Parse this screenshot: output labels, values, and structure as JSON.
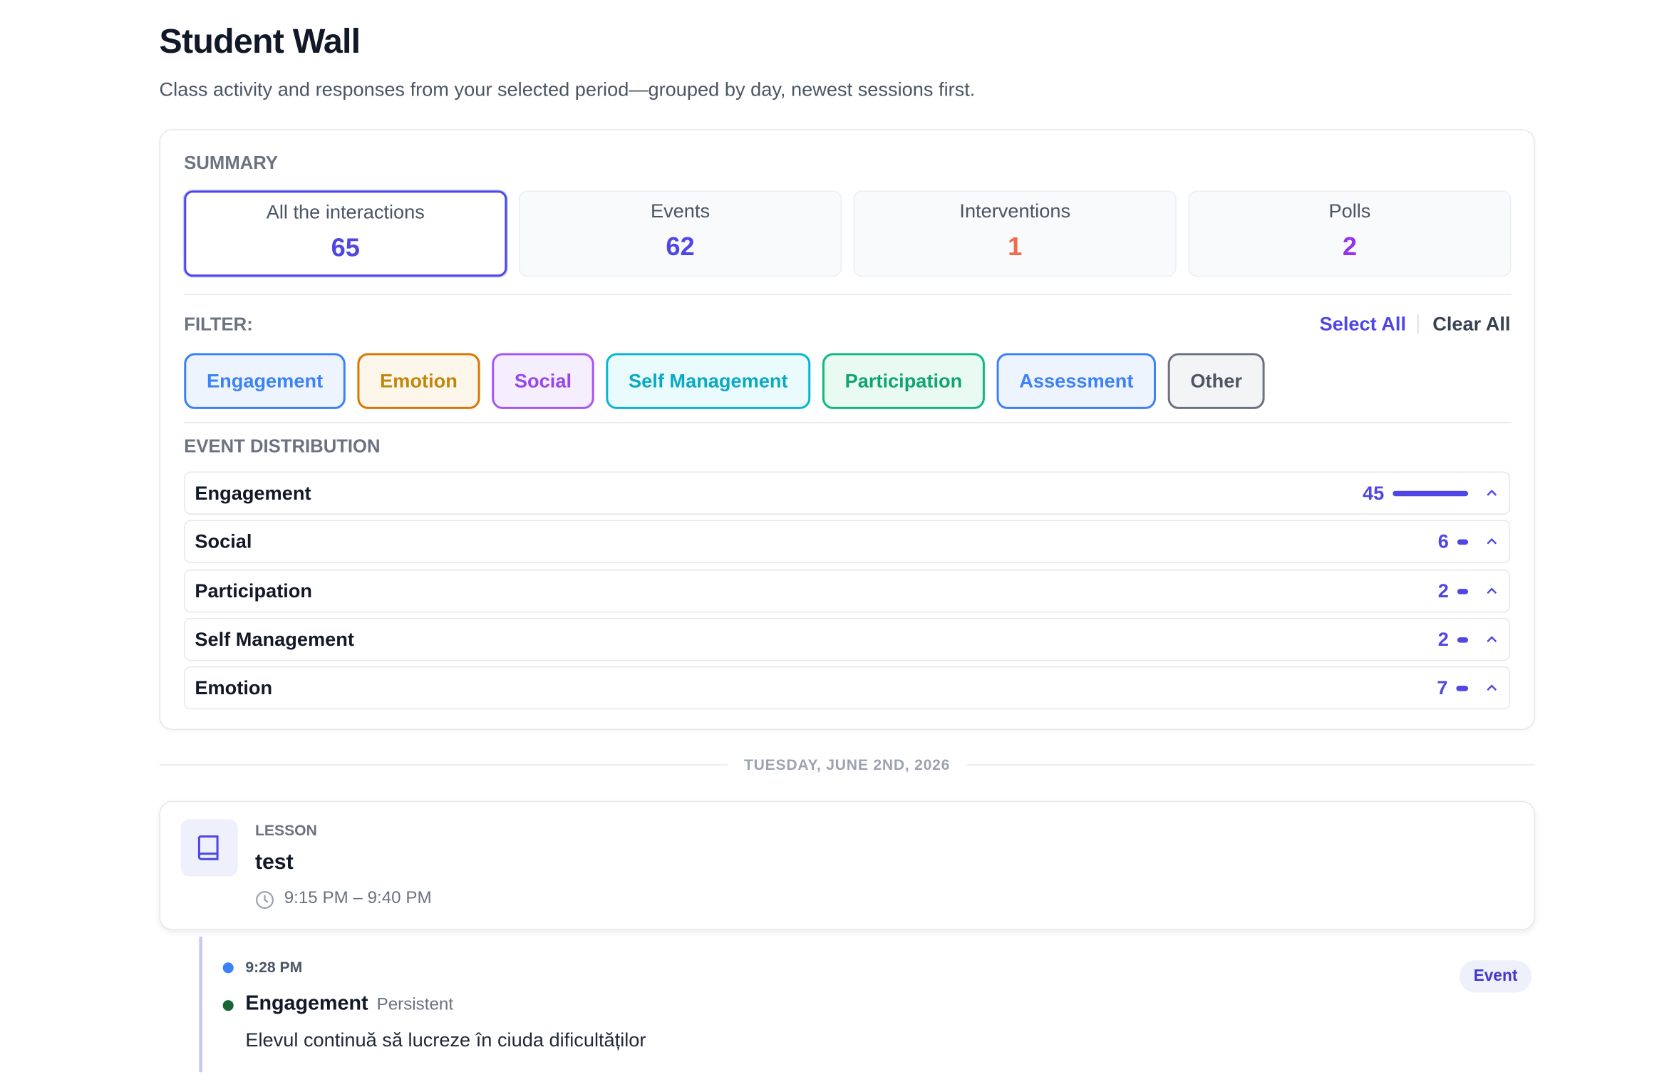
{
  "header": {
    "title": "Student Wall",
    "subtitle": "Class activity and responses from your selected period—grouped by day, newest sessions first."
  },
  "summary": {
    "heading": "SUMMARY",
    "stats": [
      {
        "label": "All the interactions",
        "value": 65
      },
      {
        "label": "Events",
        "value": 62
      },
      {
        "label": "Interventions",
        "value": 1
      },
      {
        "label": "Polls",
        "value": 2
      }
    ]
  },
  "filter": {
    "heading": "FILTER:",
    "select_all": "Select All",
    "clear_all": "Clear All",
    "chips": [
      "Engagement",
      "Emotion",
      "Social",
      "Self Management",
      "Participation",
      "Assessment",
      "Other"
    ]
  },
  "distribution": {
    "heading": "EVENT DISTRIBUTION",
    "rows": [
      {
        "label": "Engagement",
        "value": 45
      },
      {
        "label": "Social",
        "value": 6
      },
      {
        "label": "Participation",
        "value": 2
      },
      {
        "label": "Self Management",
        "value": 2
      },
      {
        "label": "Emotion",
        "value": 7
      }
    ]
  },
  "feed": {
    "date": "TUESDAY, JUNE 2ND, 2026",
    "lesson": {
      "kind": "LESSON",
      "title": "test",
      "time": "9:15 PM – 9:40 PM"
    },
    "entries": [
      {
        "time": "9:28 PM",
        "category": "Engagement",
        "tag": "Persistent",
        "text": "Elevul continuă să lucreze în ciuda dificultăților",
        "badge": "Event"
      }
    ]
  }
}
